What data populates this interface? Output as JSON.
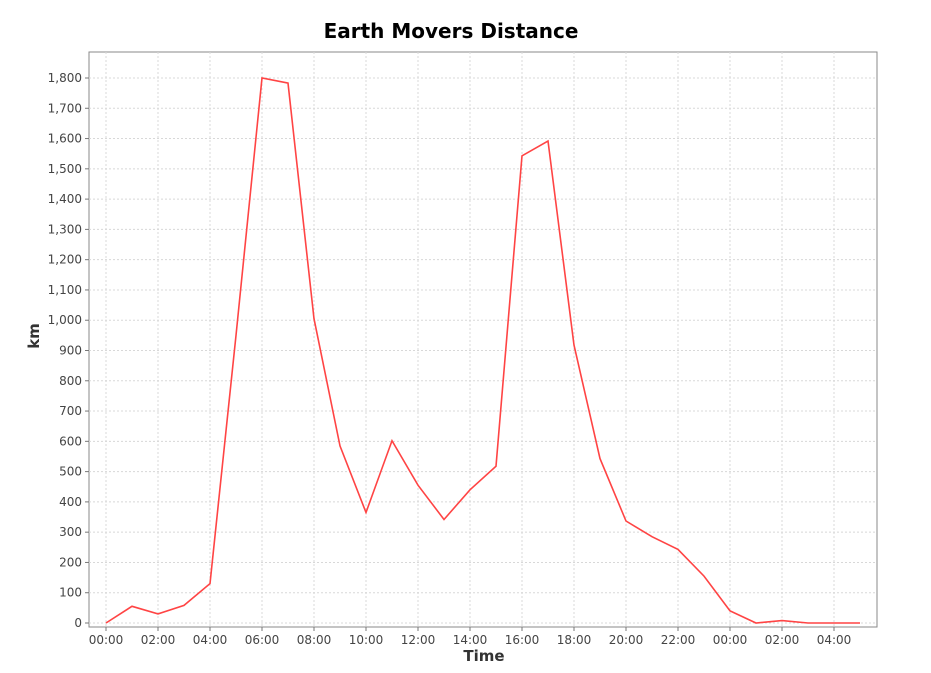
{
  "chart_data": {
    "type": "line",
    "title": "Earth Movers Distance",
    "xlabel": "Time",
    "ylabel": "km",
    "x_tick_labels": [
      "00:00",
      "02:00",
      "04:00",
      "06:00",
      "08:00",
      "10:00",
      "12:00",
      "14:00",
      "16:00",
      "18:00",
      "20:00",
      "22:00",
      "00:00",
      "02:00",
      "04:00"
    ],
    "y_tick_labels": [
      "0",
      "100",
      "200",
      "300",
      "400",
      "500",
      "600",
      "700",
      "800",
      "900",
      "1,000",
      "1,100",
      "1,200",
      "1,300",
      "1,400",
      "1,500",
      "1,600",
      "1,700",
      "1,800"
    ],
    "ylim": [
      0,
      1800
    ],
    "grid": true,
    "legend": "none",
    "series": [
      {
        "color": "#ff4444",
        "x": [
          "00:00",
          "01:00",
          "02:00",
          "03:00",
          "04:00",
          "05:00",
          "06:00",
          "07:00",
          "08:00",
          "09:00",
          "10:00",
          "11:00",
          "12:00",
          "13:00",
          "14:00",
          "15:00",
          "16:00",
          "17:00",
          "18:00",
          "19:00",
          "20:00",
          "21:00",
          "22:00",
          "23:00",
          "00:00",
          "01:00",
          "02:00",
          "03:00",
          "04:00",
          "05:00"
        ],
        "values": [
          0,
          55,
          30,
          58,
          130,
          950,
          1800,
          1783,
          1005,
          585,
          365,
          602,
          455,
          342,
          440,
          518,
          1543,
          1592,
          918,
          543,
          337,
          285,
          243,
          155,
          40,
          0,
          8,
          0,
          0,
          0
        ]
      }
    ]
  }
}
